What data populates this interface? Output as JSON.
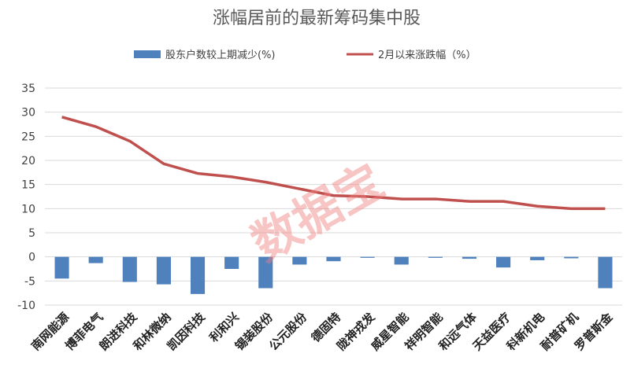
{
  "chart_data": {
    "type": "bar+line",
    "title": "涨幅居前的最新筹码集中股",
    "categories": [
      "南网能源",
      "博菲电气",
      "朗进科技",
      "和林微纳",
      "凯因科技",
      "利和兴",
      "锡装股份",
      "公元股份",
      "德固特",
      "陇神戎发",
      "威星智能",
      "祥明智能",
      "和远气体",
      "天益医疗",
      "科新机电",
      "耐普矿机",
      "罗普斯金"
    ],
    "series": [
      {
        "name": "股东户数较上期减少(%)",
        "type": "bar",
        "color": "#4f81bd",
        "values": [
          -4.5,
          -1.3,
          -5.2,
          -5.7,
          -7.7,
          -2.5,
          -6.5,
          -1.6,
          -0.9,
          -0.2,
          -1.6,
          -0.2,
          -0.4,
          -2.2,
          -0.7,
          -0.3,
          -6.5
        ]
      },
      {
        "name": "2月以来涨跌幅（%）",
        "type": "line",
        "color": "#c0504d",
        "values": [
          29.0,
          27.0,
          24.0,
          19.3,
          17.3,
          16.6,
          15.5,
          14.1,
          12.7,
          12.5,
          12.0,
          12.0,
          11.5,
          11.5,
          10.5,
          10.0,
          10.0
        ]
      }
    ],
    "ylim": [
      -10,
      35
    ],
    "yticks": [
      35,
      30,
      25,
      20,
      15,
      10,
      5,
      0,
      -5,
      -10
    ],
    "grid": true,
    "legend": "top"
  },
  "watermark": "数据宝"
}
